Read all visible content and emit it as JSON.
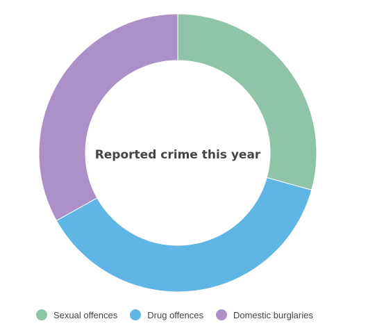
{
  "chart_data": {
    "type": "pie",
    "title": "Reported crime this year",
    "categories": [
      "Sexual offences",
      "Drug offences",
      "Domestic burglaries"
    ],
    "values": [
      29.3,
      37.6,
      33.1
    ],
    "colors": [
      "#90c4a8",
      "#5fb6e4",
      "#ab91c8"
    ],
    "legend_position": "bottom"
  }
}
